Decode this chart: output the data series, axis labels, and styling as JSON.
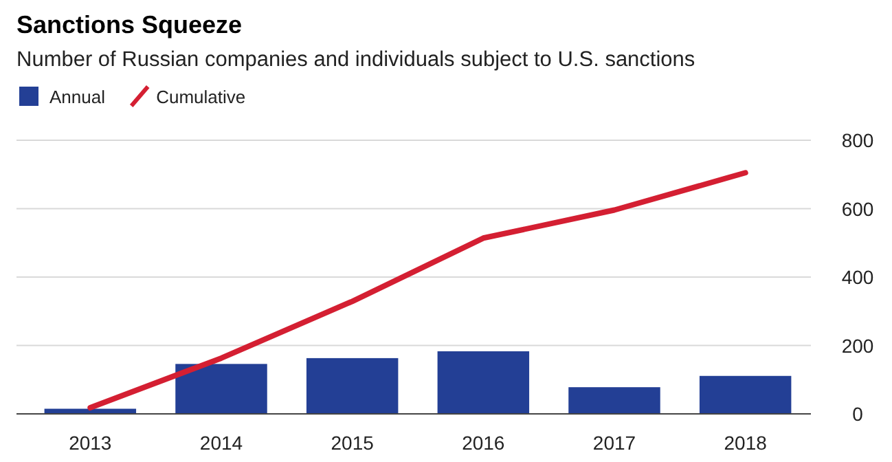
{
  "chart_data": {
    "type": "bar",
    "title": "Sanctions Squeeze",
    "subtitle": "Number of Russian companies and individuals subject to U.S. sanctions",
    "categories": [
      "2013",
      "2014",
      "2015",
      "2016",
      "2017",
      "2018"
    ],
    "series": [
      {
        "name": "Annual",
        "color": "#233f95",
        "values": [
          15,
          146,
          163,
          183,
          78,
          111
        ]
      },
      {
        "name": "Cumulative",
        "type": "line",
        "color": "#d41f32",
        "values": [
          18,
          163,
          329,
          514,
          596,
          705
        ]
      }
    ],
    "ylim": [
      0,
      800
    ],
    "yticks": [
      0,
      200,
      400,
      600,
      800
    ],
    "grid": "y",
    "legend": "top left"
  }
}
